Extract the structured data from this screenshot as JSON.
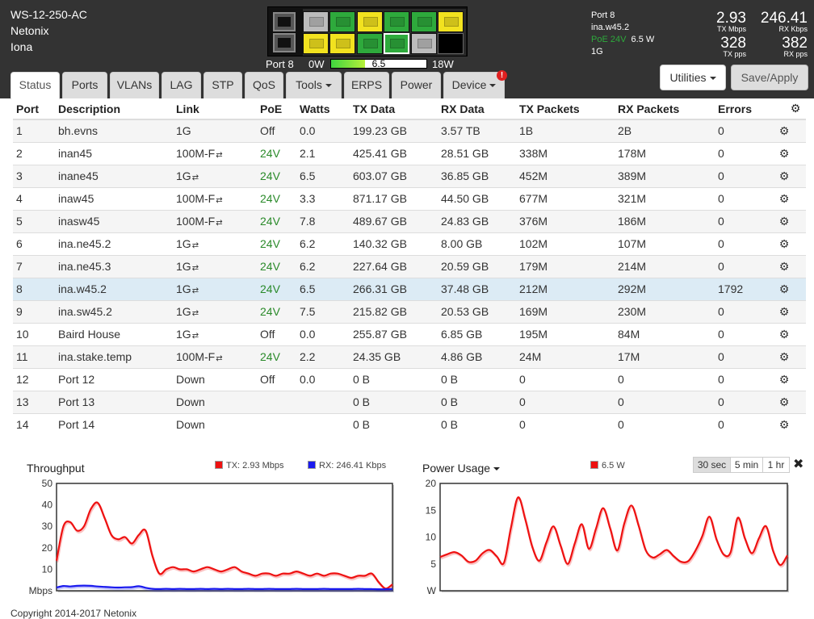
{
  "device": {
    "model": "WS-12-250-AC",
    "vendor": "Netonix",
    "name": "Iona"
  },
  "front_panel": {
    "port_label": "Port 8",
    "power_min": "0W",
    "power_max": "18W",
    "power_value": "6.5",
    "power_fraction": 0.36
  },
  "port_summary": {
    "port": "Port 8",
    "description": "ina.w45.2",
    "poe": "PoE 24V",
    "watts": "6.5 W",
    "link": "1G"
  },
  "metrics": {
    "tx_mbps": "2.93",
    "tx_mbps_label": "TX Mbps",
    "rx_kbps": "246.41",
    "rx_kbps_label": "RX Kbps",
    "tx_pps": "328",
    "tx_pps_label": "TX pps",
    "rx_pps": "382",
    "rx_pps_label": "RX pps"
  },
  "buttons": {
    "utilities": "Utilities",
    "save": "Save/Apply"
  },
  "tabs": [
    {
      "label": "Status"
    },
    {
      "label": "Ports"
    },
    {
      "label": "VLANs"
    },
    {
      "label": "LAG"
    },
    {
      "label": "STP"
    },
    {
      "label": "QoS"
    },
    {
      "label": "Tools"
    },
    {
      "label": "ERPS"
    },
    {
      "label": "Power"
    },
    {
      "label": "Device"
    }
  ],
  "alert_badge": "!",
  "table": {
    "headers": [
      "Port",
      "Description",
      "Link",
      "PoE",
      "Watts",
      "TX Data",
      "RX Data",
      "TX Packets",
      "RX Packets",
      "Errors"
    ],
    "rows": [
      {
        "port": "1",
        "desc": "bh.evns",
        "link": "1G",
        "poe": "Off",
        "watts": "0.0",
        "tx": "199.23 GB",
        "rx": "3.57 TB",
        "txp": "1B",
        "rxp": "2B",
        "err": "0"
      },
      {
        "port": "2",
        "desc": "inan45",
        "link": "100M-F",
        "poe": "24V",
        "watts": "2.1",
        "tx": "425.41 GB",
        "rx": "28.51 GB",
        "txp": "338M",
        "rxp": "178M",
        "err": "0"
      },
      {
        "port": "3",
        "desc": "inane45",
        "link": "1G",
        "poe": "24V",
        "watts": "6.5",
        "tx": "603.07 GB",
        "rx": "36.85 GB",
        "txp": "452M",
        "rxp": "389M",
        "err": "0"
      },
      {
        "port": "4",
        "desc": "inaw45",
        "link": "100M-F",
        "poe": "24V",
        "watts": "3.3",
        "tx": "871.17 GB",
        "rx": "44.50 GB",
        "txp": "677M",
        "rxp": "321M",
        "err": "0"
      },
      {
        "port": "5",
        "desc": "inasw45",
        "link": "100M-F",
        "poe": "24V",
        "watts": "7.8",
        "tx": "489.67 GB",
        "rx": "24.83 GB",
        "txp": "376M",
        "rxp": "186M",
        "err": "0"
      },
      {
        "port": "6",
        "desc": "ina.ne45.2",
        "link": "1G",
        "poe": "24V",
        "watts": "6.2",
        "tx": "140.32 GB",
        "rx": "8.00 GB",
        "txp": "102M",
        "rxp": "107M",
        "err": "0"
      },
      {
        "port": "7",
        "desc": "ina.ne45.3",
        "link": "1G",
        "poe": "24V",
        "watts": "6.2",
        "tx": "227.64 GB",
        "rx": "20.59 GB",
        "txp": "179M",
        "rxp": "214M",
        "err": "0"
      },
      {
        "port": "8",
        "desc": "ina.w45.2",
        "link": "1G",
        "poe": "24V",
        "watts": "6.5",
        "tx": "266.31 GB",
        "rx": "37.48 GB",
        "txp": "212M",
        "rxp": "292M",
        "err": "1792"
      },
      {
        "port": "9",
        "desc": "ina.sw45.2",
        "link": "1G",
        "poe": "24V",
        "watts": "7.5",
        "tx": "215.82 GB",
        "rx": "20.53 GB",
        "txp": "169M",
        "rxp": "230M",
        "err": "0"
      },
      {
        "port": "10",
        "desc": "Baird House",
        "link": "1G",
        "poe": "Off",
        "watts": "0.0",
        "tx": "255.87 GB",
        "rx": "6.85 GB",
        "txp": "195M",
        "rxp": "84M",
        "err": "0"
      },
      {
        "port": "11",
        "desc": "ina.stake.temp",
        "link": "100M-F",
        "poe": "24V",
        "watts": "2.2",
        "tx": "24.35 GB",
        "rx": "4.86 GB",
        "txp": "24M",
        "rxp": "17M",
        "err": "0"
      },
      {
        "port": "12",
        "desc": "Port 12",
        "link": "Down",
        "poe": "Off",
        "watts": "0.0",
        "tx": "0 B",
        "rx": "0 B",
        "txp": "0",
        "rxp": "0",
        "err": "0"
      },
      {
        "port": "13",
        "desc": "Port 13",
        "link": "Down",
        "poe": "",
        "watts": "",
        "tx": "0 B",
        "rx": "0 B",
        "txp": "0",
        "rxp": "0",
        "err": "0"
      },
      {
        "port": "14",
        "desc": "Port 14",
        "link": "Down",
        "poe": "",
        "watts": "",
        "tx": "0 B",
        "rx": "0 B",
        "txp": "0",
        "rxp": "0",
        "err": "0"
      }
    ],
    "link_icon": "exchange-arrows-icon"
  },
  "throughput": {
    "title": "Throughput",
    "legend_tx": "TX: 2.93 Mbps",
    "legend_rx": "RX: 246.41 Kbps",
    "unit": "Mbps",
    "colors": {
      "tx": "#ee1111",
      "rx": "#1a1aee"
    }
  },
  "power_usage": {
    "title": "Power Usage",
    "legend": "6.5 W",
    "unit": "W",
    "color": "#ee1111"
  },
  "range_buttons": [
    "30 sec",
    "5 min",
    "1 hr"
  ],
  "copyright": "Copyright 2014-2017 Netonix",
  "chart_data": [
    {
      "type": "line",
      "title": "Throughput",
      "ylabel": "Mbps",
      "ylim": [
        0,
        50
      ],
      "yticks": [
        10,
        20,
        30,
        40,
        50
      ],
      "grid": false,
      "legend": "top",
      "series": [
        {
          "name": "TX: 2.93 Mbps",
          "values": [
            14,
            30,
            32,
            28,
            30,
            38,
            41,
            34,
            26,
            24,
            25,
            22,
            26,
            28,
            16,
            8,
            10,
            11,
            10,
            10,
            9,
            10,
            11,
            10,
            9,
            10,
            11,
            9,
            8,
            7,
            8,
            8,
            7,
            8,
            8,
            9,
            8,
            7,
            8,
            7,
            8,
            8,
            7,
            6,
            7,
            7,
            8,
            4,
            1,
            3
          ]
        },
        {
          "name": "RX: 246.41 Kbps",
          "values": [
            1.5,
            2.2,
            2.0,
            2.3,
            2.4,
            2.3,
            2.0,
            1.8,
            1.6,
            1.5,
            1.6,
            1.7,
            2.1,
            1.4,
            0.9,
            0.8,
            0.9,
            0.8,
            0.9,
            0.8,
            0.8,
            0.9,
            0.8,
            0.9,
            0.8,
            0.9,
            0.8,
            0.8,
            0.9,
            0.8,
            0.8,
            0.9,
            0.8,
            0.8,
            0.8,
            0.9,
            0.8,
            0.8,
            0.8,
            0.9,
            0.8,
            0.8,
            0.8,
            0.8,
            0.9,
            0.8,
            0.8,
            0.7,
            0.7,
            0.8
          ]
        }
      ]
    },
    {
      "type": "line",
      "title": "Power Usage",
      "ylabel": "W",
      "ylim": [
        0,
        20
      ],
      "yticks": [
        5,
        10,
        15,
        20
      ],
      "grid": false,
      "legend": "top",
      "series": [
        {
          "name": "6.5 W",
          "values": [
            6.3,
            6.8,
            7.2,
            6.6,
            5.4,
            5.6,
            7.0,
            7.6,
            6.4,
            5.2,
            11.8,
            17.4,
            13.4,
            8.2,
            5.6,
            9.0,
            12.0,
            8.4,
            5.0,
            8.8,
            12.4,
            7.8,
            11.6,
            15.4,
            11.6,
            7.5,
            12.6,
            15.9,
            12.2,
            7.6,
            6.2,
            6.8,
            7.6,
            6.4,
            5.4,
            5.5,
            7.4,
            10.2,
            13.8,
            9.6,
            6.8,
            7.2,
            13.6,
            9.8,
            7.0,
            9.8,
            12.0,
            7.4,
            4.8,
            6.6
          ]
        }
      ]
    }
  ]
}
